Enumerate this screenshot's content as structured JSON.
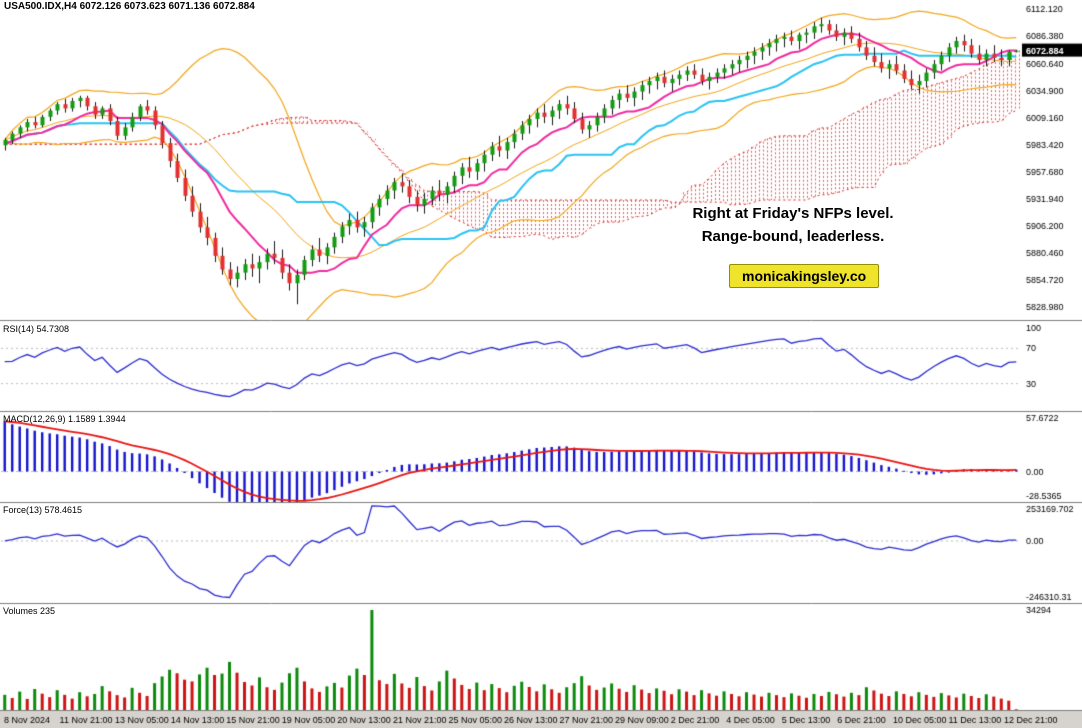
{
  "window": {
    "title_line": "USA500.IDX,H4 6072.126 6073.623 6071.136 6072.884"
  },
  "annotations": {
    "line1": "Right at Friday's NFPs level.",
    "line2": "Range-bound, leaderless.",
    "watermark": "monicakingsley.co"
  },
  "panes": {
    "rsi": {
      "label": "RSI(14) 54.7308",
      "ticks": [
        [
          100,
          "100"
        ],
        [
          70,
          "70"
        ],
        [
          30,
          "30"
        ]
      ]
    },
    "macd": {
      "label": "MACD(12,26,9) 1.1589 1.3944",
      "tick_top": "57.6722",
      "tick_zero": "0.00",
      "tick_bottom": "-28.5365"
    },
    "force": {
      "label": "Force(13) 578.4615",
      "tick_top": "253169.702",
      "tick_zero": "0.00",
      "tick_bottom": "-246310.31"
    },
    "volumes": {
      "label": "Volumes 235",
      "tick_top": "34294"
    }
  },
  "price_axis": {
    "tick_values": [
      6112.12,
      6086.38,
      6060.64,
      6034.9,
      6009.16,
      5983.42,
      5957.68,
      5931.94,
      5906.2,
      5880.46,
      5854.72,
      5828.98
    ],
    "last_price": "6072.884"
  },
  "time_axis": {
    "labels": [
      "8 Nov 2024",
      "11 Nov 21:00",
      "13 Nov 05:00",
      "14 Nov 13:00",
      "15 Nov 21:00",
      "19 Nov 05:00",
      "20 Nov 13:00",
      "21 Nov 21:00",
      "25 Nov 05:00",
      "26 Nov 13:00",
      "27 Nov 21:00",
      "29 Nov 09:00",
      "2 Dec 21:00",
      "4 Dec 05:00",
      "5 Dec 13:00",
      "6 Dec 21:00",
      "10 Dec 05:00",
      "11 Dec 13:00",
      "12 Dec 21:00"
    ]
  },
  "colors": {
    "up_candle": "#119c11",
    "down_candle": "#e33030",
    "wick": "#1a1a1a",
    "bollinger": "#f2a71b",
    "tenkan": "#f02ba0",
    "kijun": "#29c3f4",
    "cloud": "#dd2b2b",
    "rsi": "#2b2bd0",
    "macd_hist": "#1414cc",
    "macd_signal": "#e81414",
    "force": "#2b2bd0",
    "vol_up": "#0c8a0c",
    "vol_down": "#cc1414",
    "text": "#000000",
    "axis_bg": "#d6d3ce",
    "separator": "#7d7d7d",
    "tag_bg": "#000000",
    "tag_fg": "#ffffff",
    "watermark_bg": "#efe32b",
    "level_line": "#bdbdbd"
  },
  "chart_data": {
    "type": "candlestick",
    "symbol": "USA500.IDX",
    "timeframe": "H4",
    "title": "USA500.IDX,H4",
    "last_price": 6072.884,
    "price_range": [
      5818,
      6120
    ],
    "macd_range": [
      -28.5365,
      57.6722
    ],
    "indicators": {
      "bollinger": {
        "period": 20,
        "deviation": 2
      },
      "ichimoku": {
        "tenkan": 9,
        "kijun": 26,
        "senkou_b": 52,
        "shift": 26
      },
      "rsi": {
        "period": 14,
        "value": 54.7308,
        "levels": [
          70,
          30
        ]
      },
      "macd": {
        "fast": 12,
        "slow": 26,
        "signal": 9,
        "values": [
          1.1589,
          1.3944
        ]
      },
      "force": {
        "period": 13,
        "value": 578.4615
      },
      "volumes": {
        "current": 235,
        "max": 34294
      }
    },
    "ohlc": [
      [
        5983,
        5990,
        5978,
        5988
      ],
      [
        5988,
        5996,
        5984,
        5994
      ],
      [
        5994,
        6002,
        5990,
        6000
      ],
      [
        6000,
        6008,
        5996,
        6005
      ],
      [
        6005,
        6010,
        5999,
        6002
      ],
      [
        6002,
        6012,
        6000,
        6010
      ],
      [
        6010,
        6018,
        6006,
        6016
      ],
      [
        6016,
        6024,
        6012,
        6022
      ],
      [
        6022,
        6027,
        6014,
        6018
      ],
      [
        6018,
        6028,
        6015,
        6025
      ],
      [
        6025,
        6030,
        6019,
        6028
      ],
      [
        6028,
        6030,
        6016,
        6020
      ],
      [
        6020,
        6024,
        6008,
        6012
      ],
      [
        6012,
        6020,
        6008,
        6018
      ],
      [
        6018,
        6022,
        6002,
        6006
      ],
      [
        6006,
        6010,
        5988,
        5992
      ],
      [
        5992,
        6004,
        5988,
        6000
      ],
      [
        6000,
        6014,
        5996,
        6010
      ],
      [
        6010,
        6022,
        6006,
        6020
      ],
      [
        6020,
        6026,
        6012,
        6016
      ],
      [
        6016,
        6020,
        5998,
        6002
      ],
      [
        6002,
        6006,
        5980,
        5985
      ],
      [
        5985,
        5990,
        5962,
        5968
      ],
      [
        5968,
        5975,
        5948,
        5952
      ],
      [
        5952,
        5960,
        5930,
        5935
      ],
      [
        5935,
        5944,
        5915,
        5920
      ],
      [
        5920,
        5928,
        5900,
        5905
      ],
      [
        5905,
        5915,
        5888,
        5895
      ],
      [
        5895,
        5900,
        5872,
        5878
      ],
      [
        5878,
        5886,
        5860,
        5865
      ],
      [
        5865,
        5872,
        5850,
        5856
      ],
      [
        5856,
        5868,
        5848,
        5862
      ],
      [
        5862,
        5875,
        5855,
        5870
      ],
      [
        5870,
        5880,
        5858,
        5866
      ],
      [
        5866,
        5878,
        5852,
        5872
      ],
      [
        5872,
        5885,
        5865,
        5880
      ],
      [
        5880,
        5892,
        5870,
        5876
      ],
      [
        5876,
        5884,
        5856,
        5862
      ],
      [
        5862,
        5870,
        5845,
        5852
      ],
      [
        5852,
        5865,
        5832,
        5860
      ],
      [
        5860,
        5878,
        5855,
        5874
      ],
      [
        5874,
        5888,
        5868,
        5884
      ],
      [
        5884,
        5895,
        5872,
        5878
      ],
      [
        5878,
        5890,
        5870,
        5886
      ],
      [
        5886,
        5900,
        5880,
        5896
      ],
      [
        5896,
        5910,
        5890,
        5906
      ],
      [
        5906,
        5918,
        5898,
        5912
      ],
      [
        5912,
        5920,
        5900,
        5905
      ],
      [
        5905,
        5915,
        5896,
        5910
      ],
      [
        5910,
        5928,
        5904,
        5924
      ],
      [
        5924,
        5936,
        5916,
        5932
      ],
      [
        5932,
        5945,
        5926,
        5940
      ],
      [
        5940,
        5952,
        5932,
        5948
      ],
      [
        5948,
        5956,
        5938,
        5944
      ],
      [
        5944,
        5950,
        5928,
        5934
      ],
      [
        5934,
        5940,
        5920,
        5926
      ],
      [
        5926,
        5938,
        5918,
        5932
      ],
      [
        5932,
        5944,
        5926,
        5940
      ],
      [
        5940,
        5950,
        5930,
        5936
      ],
      [
        5936,
        5948,
        5928,
        5944
      ],
      [
        5944,
        5958,
        5938,
        5954
      ],
      [
        5954,
        5966,
        5946,
        5962
      ],
      [
        5962,
        5972,
        5952,
        5958
      ],
      [
        5958,
        5970,
        5950,
        5966
      ],
      [
        5966,
        5978,
        5958,
        5974
      ],
      [
        5974,
        5986,
        5968,
        5982
      ],
      [
        5982,
        5992,
        5972,
        5978
      ],
      [
        5978,
        5990,
        5970,
        5986
      ],
      [
        5986,
        5998,
        5980,
        5994
      ],
      [
        5994,
        6006,
        5988,
        6002
      ],
      [
        6002,
        6012,
        5994,
        6008
      ],
      [
        6008,
        6018,
        6000,
        6014
      ],
      [
        6014,
        6022,
        6004,
        6010
      ],
      [
        6010,
        6020,
        6002,
        6016
      ],
      [
        6016,
        6026,
        6008,
        6022
      ],
      [
        6022,
        6030,
        6012,
        6018
      ],
      [
        6018,
        6024,
        6004,
        6008
      ],
      [
        6008,
        6014,
        5994,
        5998
      ],
      [
        5998,
        6006,
        5990,
        6002
      ],
      [
        6002,
        6014,
        5996,
        6010
      ],
      [
        6010,
        6022,
        6004,
        6018
      ],
      [
        6018,
        6030,
        6012,
        6026
      ],
      [
        6026,
        6036,
        6018,
        6032
      ],
      [
        6032,
        6040,
        6024,
        6028
      ],
      [
        6028,
        6038,
        6020,
        6034
      ],
      [
        6034,
        6044,
        6026,
        6040
      ],
      [
        6040,
        6048,
        6032,
        6044
      ],
      [
        6044,
        6052,
        6036,
        6048
      ],
      [
        6048,
        6054,
        6038,
        6042
      ],
      [
        6042,
        6050,
        6034,
        6046
      ],
      [
        6046,
        6054,
        6040,
        6050
      ],
      [
        6050,
        6058,
        6044,
        6054
      ],
      [
        6054,
        6060,
        6046,
        6050
      ],
      [
        6050,
        6056,
        6040,
        6044
      ],
      [
        6044,
        6052,
        6036,
        6048
      ],
      [
        6048,
        6056,
        6042,
        6052
      ],
      [
        6052,
        6060,
        6046,
        6056
      ],
      [
        6056,
        6064,
        6050,
        6060
      ],
      [
        6060,
        6068,
        6052,
        6064
      ],
      [
        6064,
        6072,
        6056,
        6068
      ],
      [
        6068,
        6076,
        6060,
        6072
      ],
      [
        6072,
        6080,
        6064,
        6076
      ],
      [
        6076,
        6084,
        6068,
        6080
      ],
      [
        6080,
        6088,
        6072,
        6084
      ],
      [
        6084,
        6090,
        6076,
        6086
      ],
      [
        6086,
        6092,
        6078,
        6082
      ],
      [
        6082,
        6090,
        6074,
        6088
      ],
      [
        6088,
        6094,
        6080,
        6090
      ],
      [
        6090,
        6100,
        6084,
        6096
      ],
      [
        6096,
        6104,
        6090,
        6098
      ],
      [
        6098,
        6102,
        6088,
        6092
      ],
      [
        6092,
        6098,
        6082,
        6086
      ],
      [
        6086,
        6094,
        6078,
        6090
      ],
      [
        6090,
        6096,
        6080,
        6084
      ],
      [
        6084,
        6090,
        6072,
        6076
      ],
      [
        6076,
        6082,
        6064,
        6068
      ],
      [
        6068,
        6076,
        6058,
        6062
      ],
      [
        6062,
        6070,
        6052,
        6056
      ],
      [
        6056,
        6064,
        6046,
        6060
      ],
      [
        6060,
        6068,
        6050,
        6054
      ],
      [
        6054,
        6060,
        6042,
        6046
      ],
      [
        6046,
        6054,
        6036,
        6040
      ],
      [
        6040,
        6050,
        6032,
        6044
      ],
      [
        6044,
        6056,
        6038,
        6052
      ],
      [
        6052,
        6064,
        6046,
        6060
      ],
      [
        6060,
        6072,
        6054,
        6068
      ],
      [
        6068,
        6080,
        6062,
        6076
      ],
      [
        6076,
        6086,
        6070,
        6082
      ],
      [
        6082,
        6088,
        6072,
        6078
      ],
      [
        6078,
        6084,
        6066,
        6070
      ],
      [
        6070,
        6078,
        6060,
        6064
      ],
      [
        6064,
        6074,
        6058,
        6070
      ],
      [
        6070,
        6078,
        6062,
        6066
      ],
      [
        6066,
        6074,
        6058,
        6064
      ],
      [
        6064,
        6073,
        6058,
        6072
      ],
      [
        6072.126,
        6073.623,
        6071.136,
        6072.884
      ]
    ],
    "volumes": [
      5200,
      4100,
      6300,
      3800,
      7200,
      5600,
      4400,
      6800,
      5200,
      3900,
      6100,
      4700,
      5500,
      8200,
      6400,
      5100,
      4300,
      7600,
      5900,
      4800,
      9200,
      11500,
      13800,
      12600,
      10400,
      9800,
      12200,
      14500,
      12000,
      12500,
      16500,
      12800,
      9600,
      8400,
      11200,
      7800,
      6900,
      9400,
      12600,
      14500,
      9800,
      7400,
      6200,
      8100,
      9300,
      7700,
      11800,
      14200,
      12000,
      34294,
      10200,
      8900,
      12400,
      9100,
      7600,
      11300,
      8200,
      6700,
      9800,
      13500,
      10800,
      8600,
      7200,
      9400,
      6800,
      8900,
      7500,
      6100,
      8300,
      9700,
      7900,
      6400,
      8800,
      7100,
      5900,
      7800,
      9200,
      11600,
      8400,
      6900,
      7700,
      9100,
      7300,
      6200,
      8500,
      7000,
      5800,
      7400,
      6600,
      5400,
      7100,
      6300,
      5100,
      6800,
      5700,
      4900,
      6400,
      5500,
      4700,
      6100,
      5300,
      4600,
      5900,
      5100,
      4400,
      5700,
      4900,
      4200,
      5500,
      4800,
      6200,
      5400,
      4600,
      5900,
      5100,
      7800,
      6700,
      5600,
      4800,
      6400,
      5500,
      4700,
      6100,
      5200,
      4500,
      5800,
      5000,
      4300,
      5600,
      4800,
      4100,
      5400,
      4600,
      3900,
      3200,
      235
    ]
  }
}
